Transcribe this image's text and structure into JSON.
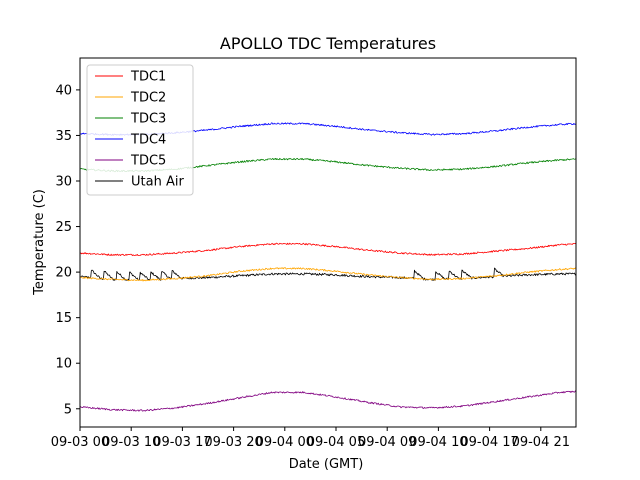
{
  "chart_data": {
    "type": "line",
    "title": "APOLLO TDC Temperatures",
    "xlabel": "Date (GMT)",
    "ylabel": "Temperature (C)",
    "x_unit": "hours since 09-03 00:00 GMT",
    "xlim": [
      0,
      46.5
    ],
    "ylim": [
      3.0,
      43.5
    ],
    "xticks": [
      {
        "value": 0,
        "label": "09-03 00"
      },
      {
        "value": 4.8,
        "label": "09-03 10"
      },
      {
        "value": 9.6,
        "label": "09-03 17"
      },
      {
        "value": 14.4,
        "label": "09-03 20"
      },
      {
        "value": 19.2,
        "label": "09-04 00"
      },
      {
        "value": 24.0,
        "label": "09-04 05"
      },
      {
        "value": 28.8,
        "label": "09-04 09"
      },
      {
        "value": 33.6,
        "label": "09-04 10"
      },
      {
        "value": 38.4,
        "label": "09-04 17"
      },
      {
        "value": 43.2,
        "label": "09-04 21"
      }
    ],
    "yticks": [
      5,
      10,
      15,
      20,
      25,
      30,
      35,
      40
    ],
    "legend": {
      "location": "top-left"
    },
    "x": [
      0,
      3,
      6,
      9,
      12,
      15,
      18,
      21,
      24,
      27,
      30,
      33,
      36,
      39,
      42,
      45,
      46.5
    ],
    "series": [
      {
        "name": "Utah Air",
        "color": "#000000",
        "values": [
          19.5,
          19.2,
          19.1,
          19.3,
          19.4,
          19.6,
          19.8,
          19.8,
          19.7,
          19.5,
          19.4,
          19.2,
          19.3,
          19.5,
          19.7,
          19.8,
          19.8
        ]
      },
      {
        "name": "TDC1",
        "color": "#ff0000",
        "values": [
          22.1,
          21.9,
          21.9,
          22.1,
          22.4,
          22.8,
          23.1,
          23.1,
          22.8,
          22.4,
          22.1,
          21.9,
          22.0,
          22.3,
          22.6,
          23.0,
          23.1
        ]
      },
      {
        "name": "TDC2",
        "color": "#ffa500",
        "values": [
          19.4,
          19.2,
          19.1,
          19.3,
          19.6,
          20.1,
          20.4,
          20.4,
          20.1,
          19.7,
          19.4,
          19.2,
          19.3,
          19.6,
          20.0,
          20.3,
          20.4
        ]
      },
      {
        "name": "TDC3",
        "color": "#008000",
        "values": [
          31.3,
          31.1,
          31.1,
          31.3,
          31.7,
          32.1,
          32.4,
          32.4,
          32.1,
          31.7,
          31.4,
          31.2,
          31.3,
          31.6,
          32.0,
          32.3,
          32.4
        ]
      },
      {
        "name": "TDC4",
        "color": "#0000ff",
        "values": [
          35.2,
          35.1,
          35.1,
          35.3,
          35.6,
          36.0,
          36.3,
          36.3,
          36.0,
          35.6,
          35.3,
          35.1,
          35.2,
          35.5,
          35.9,
          36.2,
          36.3
        ]
      },
      {
        "name": "TDC5",
        "color": "#800080",
        "values": [
          5.2,
          4.9,
          4.8,
          5.1,
          5.6,
          6.2,
          6.8,
          6.8,
          6.3,
          5.7,
          5.2,
          5.1,
          5.3,
          5.8,
          6.3,
          6.8,
          6.9
        ]
      }
    ],
    "legend_order": [
      "TDC1",
      "TDC2",
      "TDC3",
      "TDC4",
      "TDC5",
      "Utah Air"
    ],
    "utah_air_spike_times": [
      1.0,
      2.2,
      3.4,
      4.6,
      5.6,
      6.6,
      7.6,
      8.6,
      31.3,
      33.3,
      34.6,
      35.8,
      38.8
    ]
  }
}
